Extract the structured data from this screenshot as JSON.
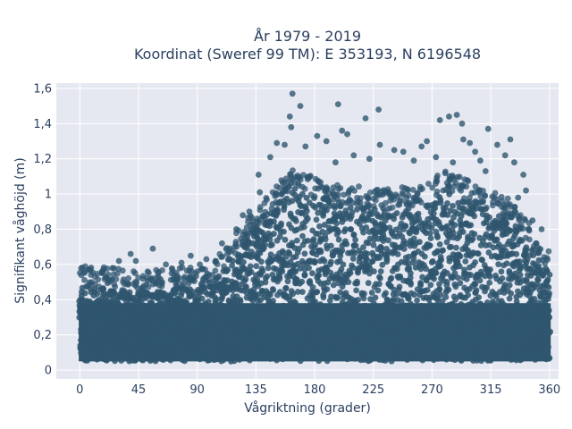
{
  "chart_data": {
    "type": "scatter",
    "title": "År 1979 - 2019",
    "subtitle": "Koordinat (Sweref 99 TM): E 353193, N 6196548",
    "xlabel": "Vågriktning (grader)",
    "ylabel": "Signifikant våghöjd (m)",
    "xlim": [
      -18,
      367
    ],
    "ylim": [
      -0.05,
      1.63
    ],
    "x_ticks": [
      0,
      45,
      90,
      135,
      180,
      225,
      270,
      315,
      360
    ],
    "x_tick_labels": [
      "0",
      "45",
      "90",
      "135",
      "180",
      "225",
      "270",
      "315",
      "360"
    ],
    "y_ticks": [
      0,
      0.2,
      0.4,
      0.6,
      0.8,
      1.0,
      1.2,
      1.4,
      1.6
    ],
    "y_tick_labels": [
      "0",
      "0,2",
      "0,4",
      "0,6",
      "0,8",
      "1",
      "1,2",
      "1,4",
      "1,6"
    ],
    "grid": true,
    "marker_color": "#2f566f",
    "plot_bg": "#e5e8f1",
    "dense_band": {
      "x": [
        0,
        360
      ],
      "y_min": 0.05,
      "upper_envelope": [
        [
          0,
          0.48
        ],
        [
          45,
          0.45
        ],
        [
          90,
          0.47
        ],
        [
          110,
          0.55
        ],
        [
          125,
          0.72
        ],
        [
          145,
          0.88
        ],
        [
          165,
          1.05
        ],
        [
          180,
          0.98
        ],
        [
          225,
          0.92
        ],
        [
          260,
          0.92
        ],
        [
          280,
          1.02
        ],
        [
          300,
          0.95
        ],
        [
          320,
          0.9
        ],
        [
          335,
          0.82
        ],
        [
          360,
          0.55
        ]
      ]
    },
    "outliers": [
      {
        "x": 163,
        "y": 1.57
      },
      {
        "x": 169,
        "y": 1.5
      },
      {
        "x": 161,
        "y": 1.44
      },
      {
        "x": 198,
        "y": 1.51
      },
      {
        "x": 229,
        "y": 1.48
      },
      {
        "x": 219,
        "y": 1.43
      },
      {
        "x": 276,
        "y": 1.42
      },
      {
        "x": 283,
        "y": 1.44
      },
      {
        "x": 289,
        "y": 1.45
      },
      {
        "x": 293,
        "y": 1.4
      },
      {
        "x": 313,
        "y": 1.37
      },
      {
        "x": 162,
        "y": 1.38
      },
      {
        "x": 182,
        "y": 1.33
      },
      {
        "x": 201,
        "y": 1.36
      },
      {
        "x": 205,
        "y": 1.34
      },
      {
        "x": 266,
        "y": 1.3
      },
      {
        "x": 294,
        "y": 1.31
      },
      {
        "x": 299,
        "y": 1.29
      },
      {
        "x": 330,
        "y": 1.31
      },
      {
        "x": 151,
        "y": 1.29
      },
      {
        "x": 157,
        "y": 1.28
      },
      {
        "x": 173,
        "y": 1.27
      },
      {
        "x": 189,
        "y": 1.3
      },
      {
        "x": 230,
        "y": 1.28
      },
      {
        "x": 241,
        "y": 1.25
      },
      {
        "x": 248,
        "y": 1.24
      },
      {
        "x": 262,
        "y": 1.27
      },
      {
        "x": 303,
        "y": 1.24
      },
      {
        "x": 320,
        "y": 1.28
      },
      {
        "x": 326,
        "y": 1.22
      },
      {
        "x": 146,
        "y": 1.21
      },
      {
        "x": 210,
        "y": 1.22
      },
      {
        "x": 222,
        "y": 1.2
      },
      {
        "x": 256,
        "y": 1.19
      },
      {
        "x": 273,
        "y": 1.21
      },
      {
        "x": 307,
        "y": 1.19
      },
      {
        "x": 333,
        "y": 1.18
      },
      {
        "x": 340,
        "y": 1.11
      },
      {
        "x": 137,
        "y": 1.11
      },
      {
        "x": 196,
        "y": 1.18
      },
      {
        "x": 286,
        "y": 1.18
      },
      {
        "x": 311,
        "y": 1.13
      },
      {
        "x": 342,
        "y": 1.02
      },
      {
        "x": 138,
        "y": 1.01
      },
      {
        "x": 56,
        "y": 0.69
      },
      {
        "x": 39,
        "y": 0.66
      },
      {
        "x": 43,
        "y": 0.62
      },
      {
        "x": 30,
        "y": 0.62
      },
      {
        "x": 66,
        "y": 0.6
      },
      {
        "x": 85,
        "y": 0.65
      },
      {
        "x": 97,
        "y": 0.63
      },
      {
        "x": 104,
        "y": 0.62
      },
      {
        "x": 78,
        "y": 0.61
      },
      {
        "x": 8,
        "y": 0.57
      },
      {
        "x": 4,
        "y": 0.56
      },
      {
        "x": 17,
        "y": 0.56
      },
      {
        "x": 25,
        "y": 0.58
      },
      {
        "x": 52,
        "y": 0.56
      },
      {
        "x": 71,
        "y": 0.57
      },
      {
        "x": 60,
        "y": 0.55
      },
      {
        "x": 109,
        "y": 0.72
      },
      {
        "x": 115,
        "y": 0.69
      },
      {
        "x": 120,
        "y": 0.8
      },
      {
        "x": 125,
        "y": 0.88
      },
      {
        "x": 130,
        "y": 0.9
      },
      {
        "x": 358,
        "y": 0.48
      },
      {
        "x": 355,
        "y": 0.54
      },
      {
        "x": 350,
        "y": 0.72
      },
      {
        "x": 354,
        "y": 0.8
      },
      {
        "x": 347,
        "y": 0.85
      },
      {
        "x": 336,
        "y": 0.98
      },
      {
        "x": 92,
        "y": 0.6
      }
    ]
  }
}
